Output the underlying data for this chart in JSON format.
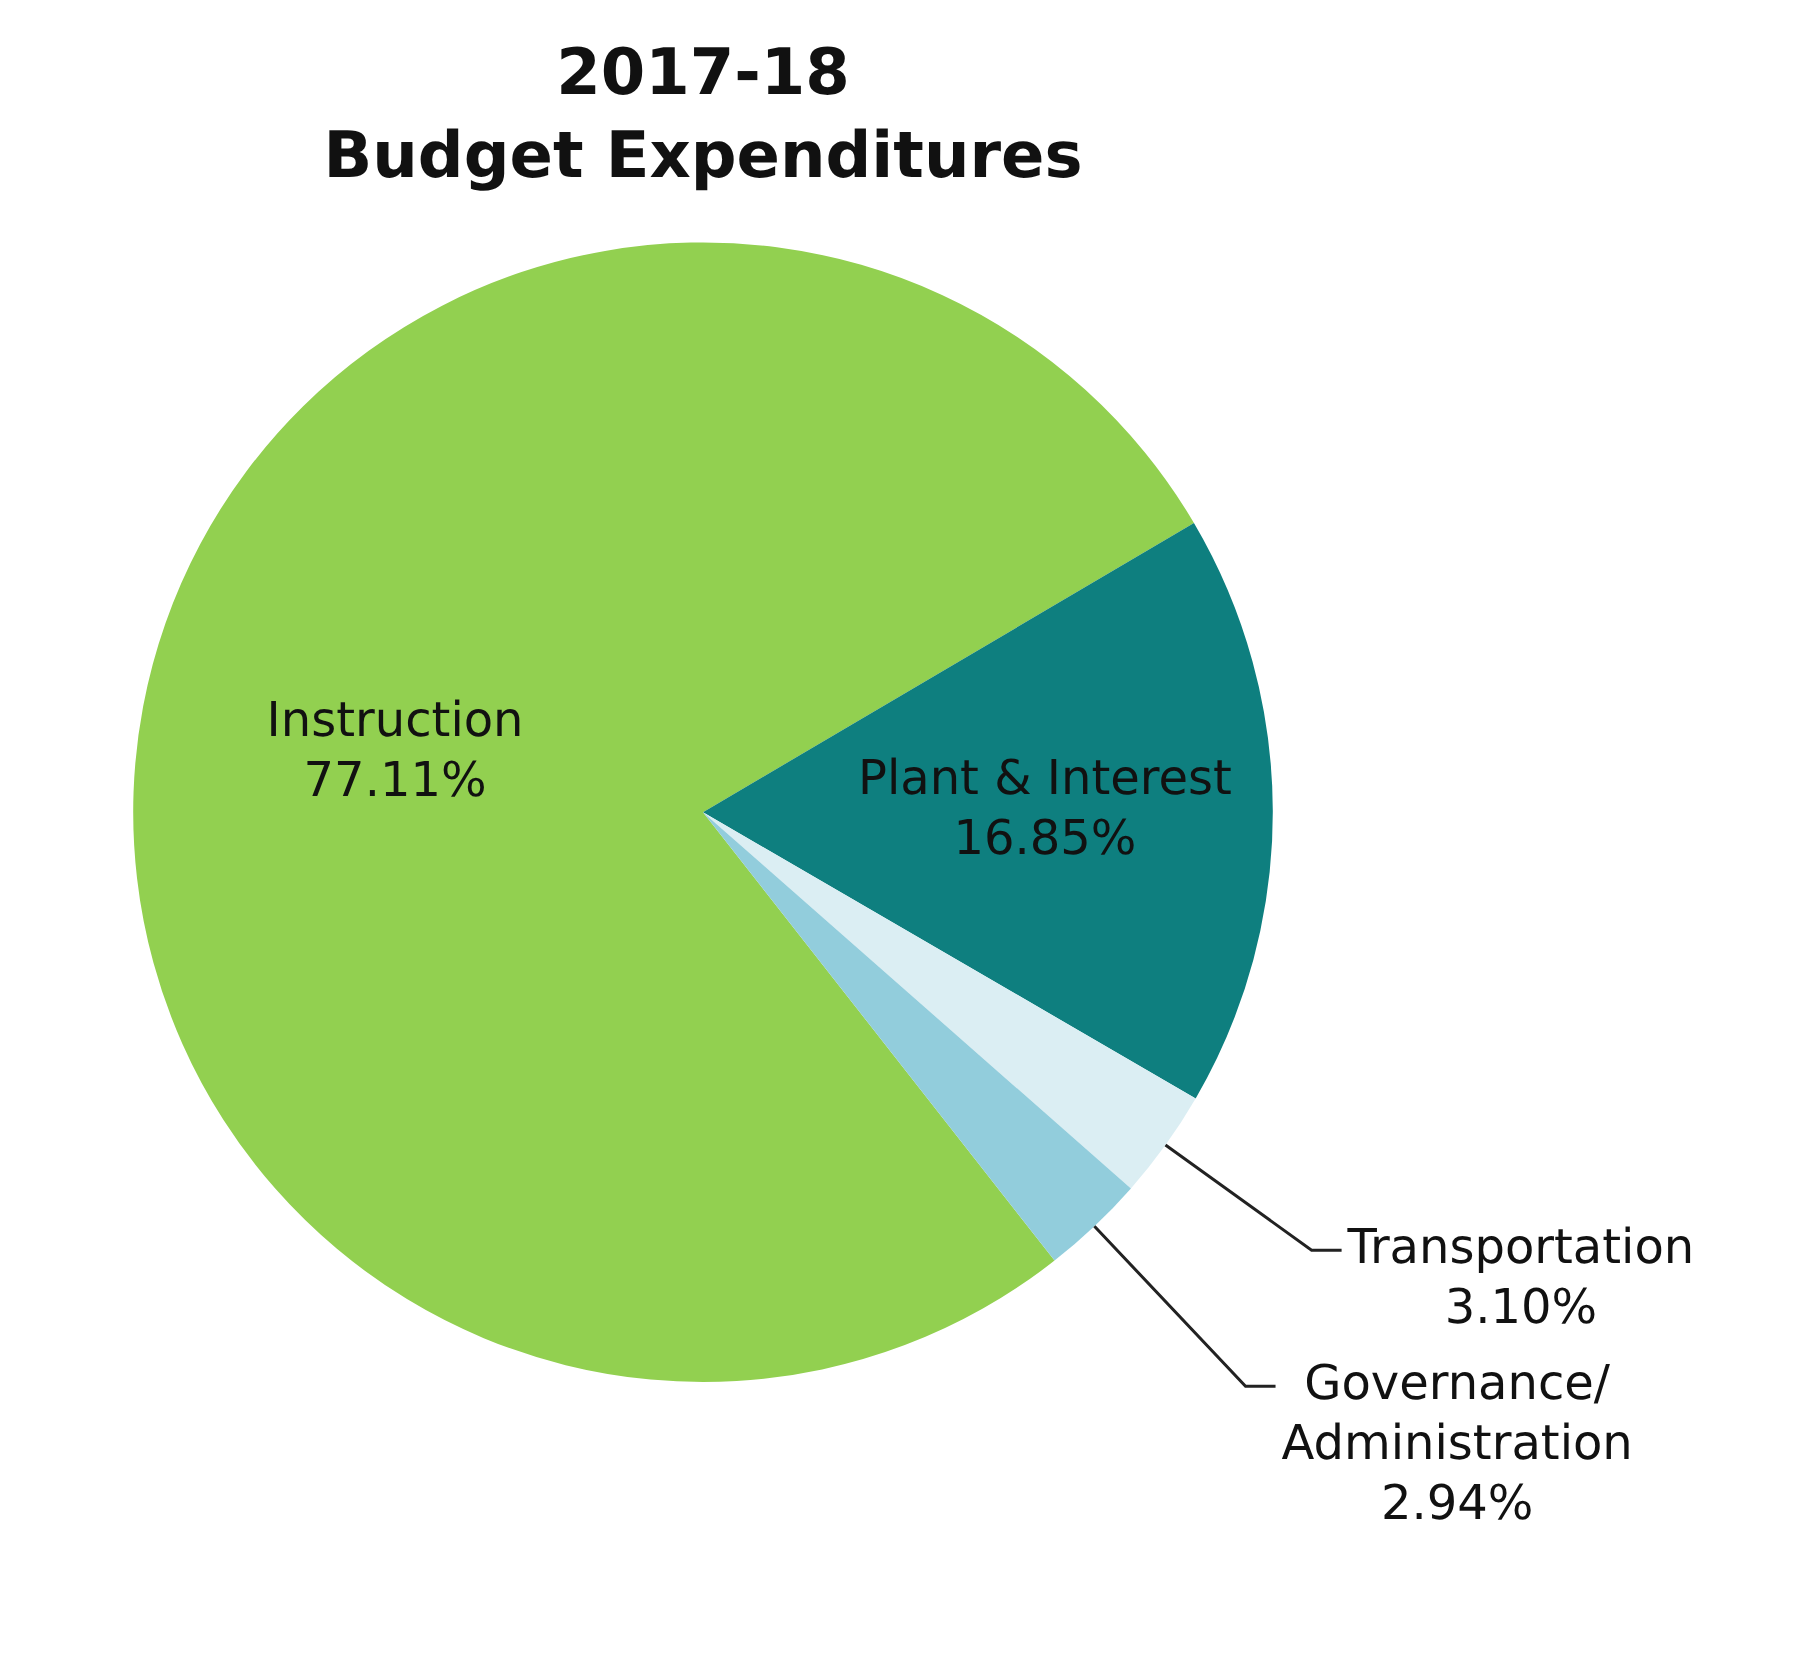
{
  "chart_data": {
    "type": "pie",
    "title": "2017-18\nBudget Expenditures",
    "categories": [
      "Instruction",
      "Plant & Interest",
      "Transportation",
      "Governance/Administration"
    ],
    "values": [
      77.11,
      16.85,
      3.1,
      2.94
    ],
    "colors": [
      "#92d050",
      "#0e7f7f",
      "#dbeef3",
      "#92cddc"
    ],
    "value_labels": [
      "77.11%",
      "16.85%",
      "3.10%",
      "2.94%"
    ],
    "legend": false
  }
}
